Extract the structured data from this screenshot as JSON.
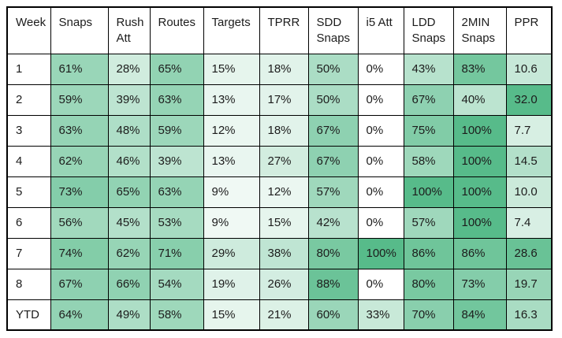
{
  "table": {
    "columns": [
      "Week",
      "Snaps",
      "Rush Att",
      "Routes",
      "Targets",
      "TPRR",
      "SDD Snaps",
      "i5 Att",
      "LDD Snaps",
      "2MIN Snaps",
      "PPR"
    ],
    "rows": [
      {
        "cells": [
          "1",
          "61%",
          "28%",
          "65%",
          "15%",
          "18%",
          "50%",
          "0%",
          "43%",
          "83%",
          "10.6"
        ]
      },
      {
        "cells": [
          "2",
          "59%",
          "39%",
          "63%",
          "13%",
          "17%",
          "50%",
          "0%",
          "67%",
          "40%",
          "32.0"
        ]
      },
      {
        "cells": [
          "3",
          "63%",
          "48%",
          "59%",
          "12%",
          "18%",
          "67%",
          "0%",
          "75%",
          "100%",
          "7.7"
        ]
      },
      {
        "cells": [
          "4",
          "62%",
          "46%",
          "39%",
          "13%",
          "27%",
          "67%",
          "0%",
          "58%",
          "100%",
          "14.5"
        ]
      },
      {
        "cells": [
          "5",
          "73%",
          "65%",
          "63%",
          "9%",
          "12%",
          "57%",
          "0%",
          "100%",
          "100%",
          "10.0"
        ]
      },
      {
        "cells": [
          "6",
          "56%",
          "45%",
          "53%",
          "9%",
          "15%",
          "42%",
          "0%",
          "57%",
          "100%",
          "7.4"
        ]
      },
      {
        "cells": [
          "7",
          "74%",
          "62%",
          "71%",
          "29%",
          "38%",
          "80%",
          "100%",
          "86%",
          "86%",
          "28.6"
        ]
      },
      {
        "cells": [
          "8",
          "67%",
          "66%",
          "54%",
          "19%",
          "26%",
          "88%",
          "0%",
          "80%",
          "73%",
          "19.7"
        ]
      },
      {
        "cells": [
          "YTD",
          "64%",
          "49%",
          "58%",
          "15%",
          "21%",
          "60%",
          "33%",
          "70%",
          "84%",
          "16.3"
        ]
      }
    ]
  },
  "heatmap": {
    "min_color": "#ffffff",
    "max_color": "#57bb8a",
    "column_scale_max": [
      null,
      100,
      100,
      100,
      100,
      100,
      100,
      100,
      100,
      100,
      32
    ],
    "border_color": "#000000"
  }
}
